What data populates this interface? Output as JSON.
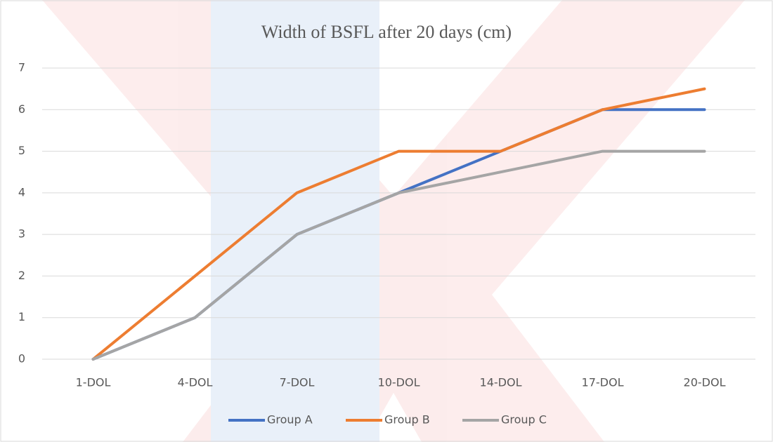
{
  "chart_data": {
    "type": "line",
    "title": "Width of BSFL after 20 days (cm)",
    "categories": [
      "1-DOL",
      "4-DOL",
      "7-DOL",
      "10-DOL",
      "14-DOL",
      "17-DOL",
      "20-DOL"
    ],
    "series": [
      {
        "name": "Group A",
        "color": "#4472c4",
        "values": [
          0,
          1,
          3,
          4,
          5,
          6,
          6
        ]
      },
      {
        "name": "Group B",
        "color": "#ed7d31",
        "values": [
          0,
          2,
          4,
          5,
          5,
          6,
          6.5
        ]
      },
      {
        "name": "Group C",
        "color": "#a5a5a5",
        "values": [
          0,
          1,
          3,
          4,
          4.5,
          5,
          5
        ]
      }
    ],
    "ylim": [
      0,
      7
    ],
    "yticks": [
      0,
      1,
      2,
      3,
      4,
      5,
      6,
      7
    ],
    "grid": true,
    "legend": "bottom"
  }
}
